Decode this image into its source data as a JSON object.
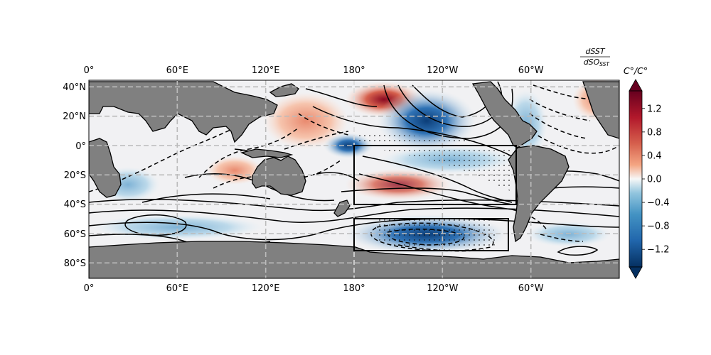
{
  "figure": {
    "title_text": "dSST / dSO_SST",
    "title_numerator": "dSST",
    "title_denominator_main": "dSO",
    "title_denominator_sub": "SST"
  },
  "map": {
    "lon_top_labels": [
      "0°",
      "60°E",
      "120°E",
      "180°",
      "120°W",
      "60°W"
    ],
    "lon_bottom_labels": [
      "0°",
      "60°E",
      "120°E",
      "180°",
      "120°W",
      "60°W"
    ],
    "lat_labels": [
      "40°N",
      "20°N",
      "0°",
      "20°S",
      "40°S",
      "60°S",
      "80°S"
    ],
    "lon_ticks_deg_east": [
      0,
      60,
      120,
      180,
      240,
      300
    ],
    "lat_ticks_deg": [
      40,
      20,
      0,
      -20,
      -40,
      -60,
      -80
    ],
    "extent": {
      "lon_min": 0,
      "lon_max": 360,
      "lat_min": -90,
      "lat_max": 45
    },
    "land_color": "#808080",
    "gridlines": "dashed light gray",
    "boxes": [
      {
        "name": "tropical-east-pacific",
        "lon_west": 180,
        "lon_east": 290,
        "lat_north": 0,
        "lat_south": -40
      },
      {
        "name": "southern-ocean-pacific",
        "lon_west": 180,
        "lon_east": 285,
        "lat_north": -50,
        "lat_south": -72
      }
    ]
  },
  "colorbar": {
    "unit": "C°/C°",
    "tick_labels": [
      "1.2",
      "0.8",
      "0.4",
      "0.0",
      "−0.4",
      "−0.8",
      "−1.2"
    ],
    "ticks": [
      1.2,
      0.8,
      0.4,
      0.0,
      -0.4,
      -0.8,
      -1.2
    ],
    "vmin": -1.5,
    "vmax": 1.5,
    "colormap": "RdBu_r",
    "extend": "both",
    "colors": {
      "dark_red": "#67001f",
      "red": "#d6604d",
      "white": "#f7f7f7",
      "blue": "#4393c3",
      "dark_blue": "#053061"
    }
  }
}
